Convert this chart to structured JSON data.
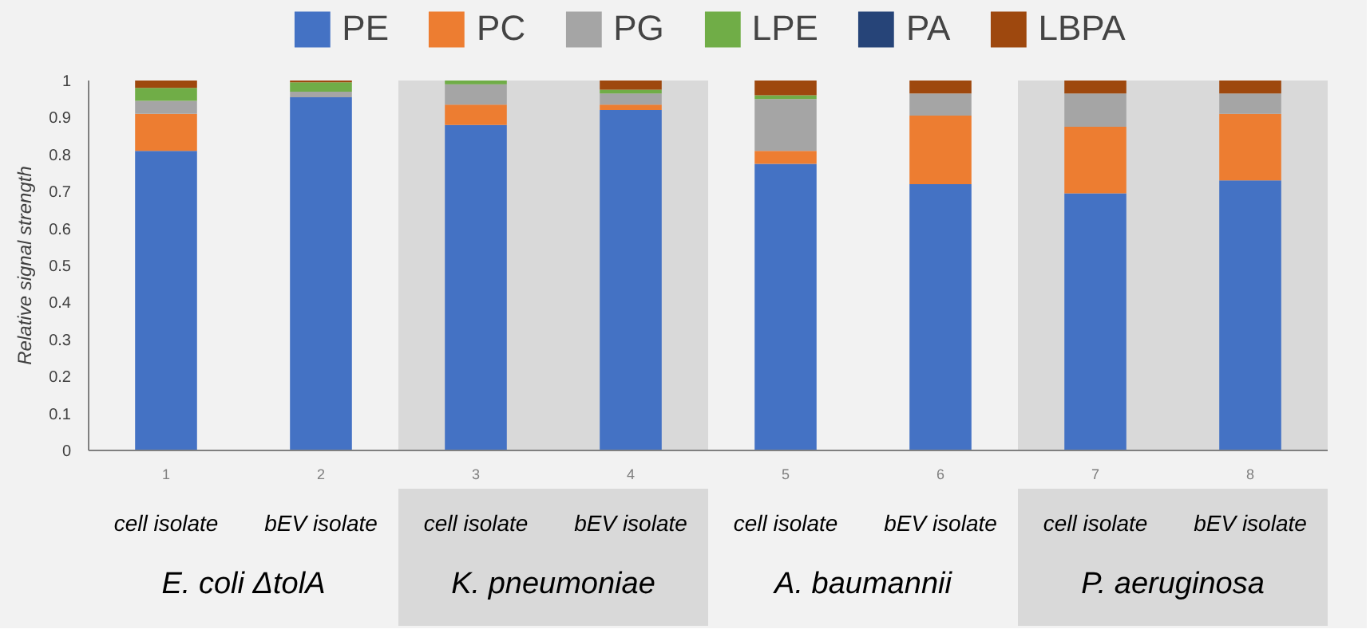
{
  "chart_data": {
    "type": "bar",
    "stacked": true,
    "ylabel": "Relative signal strength",
    "x": [
      1,
      2,
      3,
      4,
      5,
      6,
      7,
      8
    ],
    "xlim": [
      0.5,
      8.5
    ],
    "xticks": [
      1,
      2,
      3,
      4,
      5,
      6,
      7,
      8
    ],
    "ylim": [
      0,
      1
    ],
    "yticks": [
      0,
      0.1,
      0.2,
      0.3,
      0.4,
      0.5,
      0.6,
      0.7,
      0.8,
      0.9,
      1
    ],
    "series": [
      {
        "name": "PE",
        "color": "#4472c4",
        "values": [
          0.81,
          0.955,
          0.88,
          0.92,
          0.775,
          0.72,
          0.695,
          0.73
        ]
      },
      {
        "name": "PC",
        "color": "#ed7d31",
        "values": [
          0.1,
          0,
          0.055,
          0.015,
          0.035,
          0.185,
          0.18,
          0.18
        ]
      },
      {
        "name": "PG",
        "color": "#a5a5a5",
        "values": [
          0.035,
          0.015,
          0.055,
          0.03,
          0.14,
          0.06,
          0.09,
          0.055
        ]
      },
      {
        "name": "LPE",
        "color": "#70ad47",
        "values": [
          0.035,
          0.025,
          0.01,
          0.01,
          0.01,
          0,
          0,
          0
        ]
      },
      {
        "name": "PA",
        "color": "#264478",
        "values": [
          0,
          0,
          0,
          0,
          0,
          0,
          0,
          0
        ]
      },
      {
        "name": "LBPA",
        "color": "#9e480e",
        "values": [
          0.02,
          0.005,
          0,
          0.025,
          0.04,
          0.035,
          0.035,
          0.035
        ]
      }
    ],
    "bands": [
      {
        "axis": "x",
        "from": 2.5,
        "to": 4.5,
        "color": "#d9d9d9"
      },
      {
        "axis": "x",
        "from": 6.5,
        "to": 8.5,
        "color": "#d9d9d9"
      }
    ],
    "annotations": [
      "cell isolate",
      "bEV isolate",
      "cell isolate",
      "bEV isolate",
      "cell isolate",
      "bEV isolate",
      "cell isolate",
      "bEV isolate",
      "E. coli ΔtolA",
      "K. pneumoniae",
      "A. baumannii",
      "P. aeruginosa"
    ],
    "legend": "top",
    "grid": false
  }
}
